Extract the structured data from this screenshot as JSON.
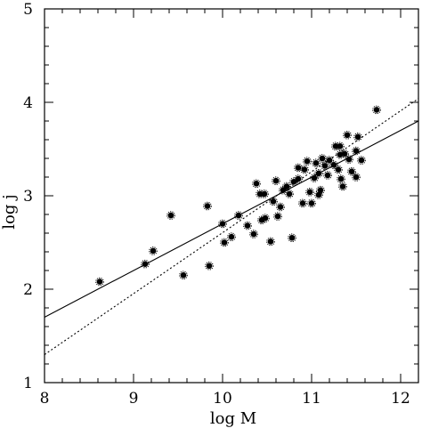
{
  "chart_data": {
    "type": "scatter",
    "xlabel": "log M",
    "ylabel": "log j",
    "xlim": [
      8,
      12.2
    ],
    "ylim": [
      1,
      5
    ],
    "x_ticks": [
      "8",
      "9",
      "10",
      "11",
      "12"
    ],
    "y_ticks": [
      "1",
      "2",
      "3",
      "4",
      "5"
    ],
    "grid": false,
    "legend": "none",
    "marker_color": "#000000",
    "points": [
      [
        8.62,
        2.08
      ],
      [
        9.13,
        2.27
      ],
      [
        9.22,
        2.41
      ],
      [
        9.42,
        2.79
      ],
      [
        9.56,
        2.15
      ],
      [
        9.83,
        2.89
      ],
      [
        9.85,
        2.25
      ],
      [
        10.0,
        2.7
      ],
      [
        10.02,
        2.5
      ],
      [
        10.1,
        2.56
      ],
      [
        10.18,
        2.79
      ],
      [
        10.28,
        2.68
      ],
      [
        10.35,
        2.59
      ],
      [
        10.38,
        3.13
      ],
      [
        10.42,
        3.02
      ],
      [
        10.44,
        2.74
      ],
      [
        10.47,
        3.02
      ],
      [
        10.48,
        2.76
      ],
      [
        10.54,
        2.51
      ],
      [
        10.57,
        2.94
      ],
      [
        10.6,
        3.16
      ],
      [
        10.62,
        2.78
      ],
      [
        10.65,
        2.88
      ],
      [
        10.68,
        3.06
      ],
      [
        10.72,
        3.1
      ],
      [
        10.75,
        3.02
      ],
      [
        10.78,
        2.55
      ],
      [
        10.8,
        3.15
      ],
      [
        10.85,
        3.18
      ],
      [
        10.85,
        3.3
      ],
      [
        10.9,
        2.92
      ],
      [
        10.92,
        3.28
      ],
      [
        10.95,
        3.37
      ],
      [
        10.98,
        3.04
      ],
      [
        11.0,
        2.92
      ],
      [
        11.03,
        3.19
      ],
      [
        11.05,
        3.35
      ],
      [
        11.08,
        3.01
      ],
      [
        11.08,
        3.24
      ],
      [
        11.1,
        3.06
      ],
      [
        11.12,
        3.4
      ],
      [
        11.15,
        3.32
      ],
      [
        11.18,
        3.22
      ],
      [
        11.2,
        3.38
      ],
      [
        11.25,
        3.33
      ],
      [
        11.27,
        3.53
      ],
      [
        11.3,
        3.28
      ],
      [
        11.32,
        3.44
      ],
      [
        11.32,
        3.53
      ],
      [
        11.33,
        3.18
      ],
      [
        11.35,
        3.1
      ],
      [
        11.37,
        3.45
      ],
      [
        11.4,
        3.65
      ],
      [
        11.42,
        3.39
      ],
      [
        11.45,
        3.26
      ],
      [
        11.5,
        3.48
      ],
      [
        11.52,
        3.63
      ],
      [
        11.56,
        3.38
      ],
      [
        11.5,
        3.2
      ],
      [
        11.73,
        3.92
      ]
    ],
    "lines": [
      {
        "style": "solid",
        "x": [
          8,
          12.2
        ],
        "y": [
          1.7,
          3.8
        ]
      },
      {
        "style": "dotted",
        "x": [
          8,
          12.2
        ],
        "y": [
          1.3,
          4.04
        ]
      }
    ]
  }
}
